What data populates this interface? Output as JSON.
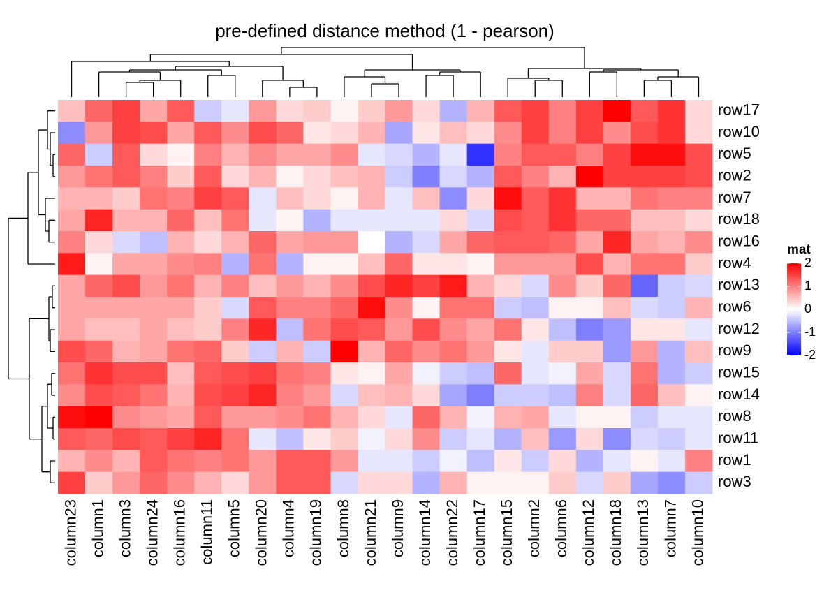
{
  "chart_data": {
    "type": "heatmap",
    "title": "pre-defined distance method (1 - pearson)",
    "columns": [
      "column23",
      "column1",
      "column3",
      "column24",
      "column16",
      "column11",
      "column5",
      "column20",
      "column4",
      "column19",
      "column8",
      "column21",
      "column9",
      "column14",
      "column22",
      "column17",
      "column15",
      "column2",
      "column6",
      "column12",
      "column18",
      "column13",
      "column7",
      "column10"
    ],
    "rows": [
      "row17",
      "row10",
      "row5",
      "row2",
      "row7",
      "row18",
      "row16",
      "row4",
      "row13",
      "row6",
      "row12",
      "row9",
      "row15",
      "row14",
      "row8",
      "row11",
      "row1",
      "row3"
    ],
    "values": [
      [
        0.5,
        1.2,
        1.5,
        0.7,
        1.3,
        -0.4,
        -0.2,
        0.8,
        0.3,
        0.4,
        0.1,
        0.4,
        0.8,
        0.3,
        -0.6,
        0.6,
        1.3,
        1.5,
        1.0,
        1.5,
        2.0,
        1.3,
        1.6,
        0.3
      ],
      [
        -0.9,
        0.8,
        1.5,
        1.4,
        0.7,
        1.3,
        0.9,
        1.4,
        1.2,
        0.2,
        0.3,
        0.6,
        -0.7,
        0.2,
        0.5,
        0.3,
        0.9,
        1.5,
        1.0,
        1.5,
        0.9,
        1.4,
        1.6,
        0.3
      ],
      [
        1.2,
        -0.4,
        1.3,
        0.3,
        0.1,
        1.0,
        0.6,
        0.9,
        0.7,
        0.7,
        0.9,
        -0.2,
        -0.3,
        -0.6,
        -0.2,
        -1.6,
        1.0,
        1.3,
        1.3,
        1.0,
        1.5,
        1.9,
        1.9,
        1.4
      ],
      [
        0.8,
        1.1,
        1.3,
        1.0,
        0.4,
        1.3,
        0.3,
        0.6,
        0.1,
        0.3,
        0.5,
        0.6,
        -0.4,
        -1.0,
        -0.3,
        -0.6,
        1.3,
        1.0,
        0.6,
        2.0,
        1.5,
        1.5,
        1.5,
        1.4
      ],
      [
        0.6,
        0.6,
        0.4,
        1.1,
        1.0,
        1.5,
        1.3,
        -0.2,
        0.5,
        0.3,
        0.1,
        0.6,
        -0.2,
        0.5,
        -0.9,
        0.3,
        1.9,
        1.3,
        1.6,
        0.6,
        0.6,
        1.1,
        1.0,
        1.0
      ],
      [
        0.7,
        1.7,
        0.6,
        0.6,
        1.2,
        0.5,
        1.1,
        -0.2,
        0.1,
        -0.6,
        -0.2,
        -0.2,
        -0.2,
        -0.2,
        0.3,
        -0.3,
        1.4,
        1.3,
        1.6,
        1.2,
        1.2,
        0.5,
        0.5,
        0.3
      ],
      [
        1.0,
        0.3,
        -0.3,
        -0.5,
        0.6,
        0.3,
        0.6,
        1.2,
        0.7,
        0.8,
        0.8,
        0.0,
        -0.6,
        -0.3,
        0.7,
        1.2,
        1.3,
        1.3,
        1.2,
        0.7,
        1.7,
        0.7,
        0.6,
        0.9
      ],
      [
        1.8,
        0.1,
        0.7,
        0.7,
        0.9,
        1.0,
        -0.6,
        1.1,
        -0.6,
        0.1,
        0.1,
        0.5,
        1.2,
        0.2,
        0.2,
        0.1,
        0.8,
        0.8,
        0.8,
        1.4,
        0.6,
        1.1,
        1.1,
        0.4
      ],
      [
        0.7,
        1.2,
        1.4,
        0.8,
        1.1,
        0.6,
        1.0,
        0.5,
        0.8,
        0.6,
        0.9,
        1.4,
        1.7,
        1.5,
        1.8,
        0.6,
        0.3,
        -0.3,
        0.9,
        0.4,
        1.2,
        -1.2,
        -0.4,
        -0.3
      ],
      [
        0.7,
        0.7,
        0.7,
        0.7,
        0.7,
        0.4,
        -0.3,
        1.3,
        1.0,
        1.0,
        1.2,
        1.9,
        0.9,
        0.1,
        1.1,
        1.1,
        -0.4,
        -0.5,
        0.1,
        0.1,
        0.5,
        -0.3,
        -0.4,
        0.6
      ],
      [
        0.7,
        0.5,
        0.5,
        0.7,
        0.5,
        0.4,
        1.0,
        1.7,
        -0.5,
        1.1,
        1.4,
        1.3,
        0.8,
        1.4,
        0.9,
        0.7,
        1.1,
        0.2,
        -0.5,
        -1.0,
        -0.8,
        0.2,
        0.2,
        -0.2
      ],
      [
        1.4,
        1.2,
        0.6,
        0.7,
        1.1,
        1.2,
        0.4,
        -0.4,
        0.6,
        -0.4,
        2.0,
        0.6,
        1.2,
        0.9,
        1.1,
        0.8,
        0.2,
        -0.2,
        0.4,
        0.4,
        -0.8,
        0.8,
        -0.6,
        0.5
      ],
      [
        1.1,
        1.6,
        1.4,
        1.4,
        0.5,
        1.3,
        1.4,
        1.5,
        1.1,
        1.0,
        0.2,
        0.1,
        0.7,
        -0.1,
        -0.4,
        -0.5,
        1.2,
        -0.2,
        -0.1,
        0.7,
        -0.3,
        1.1,
        -0.6,
        -0.4
      ],
      [
        0.9,
        1.4,
        1.3,
        1.1,
        0.6,
        1.4,
        1.5,
        1.7,
        1.0,
        0.8,
        -0.3,
        0.5,
        0.6,
        0.3,
        -0.7,
        -1.0,
        -0.4,
        -0.4,
        -0.5,
        1.0,
        -0.3,
        1.2,
        0.5,
        0.1
      ],
      [
        1.9,
        2.0,
        0.9,
        0.8,
        0.7,
        1.3,
        0.8,
        0.8,
        0.9,
        1.1,
        0.6,
        0.3,
        -0.2,
        1.2,
        0.6,
        -0.1,
        0.6,
        0.7,
        -0.2,
        0.1,
        0.1,
        -0.4,
        -0.2,
        -0.2
      ],
      [
        1.3,
        1.2,
        1.4,
        1.3,
        1.5,
        1.7,
        1.1,
        -0.2,
        -0.5,
        0.2,
        0.4,
        -0.1,
        0.3,
        0.9,
        -0.4,
        -0.2,
        -0.6,
        0.5,
        -0.8,
        0.3,
        -0.9,
        -0.3,
        -0.4,
        -0.2
      ],
      [
        0.6,
        0.9,
        0.6,
        1.3,
        1.1,
        1.0,
        1.1,
        0.8,
        1.3,
        1.3,
        0.8,
        -0.2,
        -0.2,
        -0.4,
        -0.1,
        -0.5,
        0.2,
        -0.4,
        0.3,
        -0.6,
        -0.2,
        0.1,
        -0.2,
        1.0
      ],
      [
        1.5,
        0.4,
        0.8,
        1.2,
        0.9,
        0.6,
        0.3,
        0.8,
        1.3,
        1.3,
        -0.3,
        0.3,
        0.3,
        -0.6,
        0.6,
        0.1,
        0.1,
        0.1,
        0.4,
        -0.3,
        0.4,
        -0.7,
        -0.9,
        -0.4
      ]
    ],
    "legend_title": "mat",
    "zlim": [
      -2,
      2
    ],
    "zticks": [
      -2,
      -1,
      0,
      1,
      2
    ],
    "low_color": "#0000ff",
    "mid_color": "#ffffff",
    "high_color": "#ff0000"
  }
}
